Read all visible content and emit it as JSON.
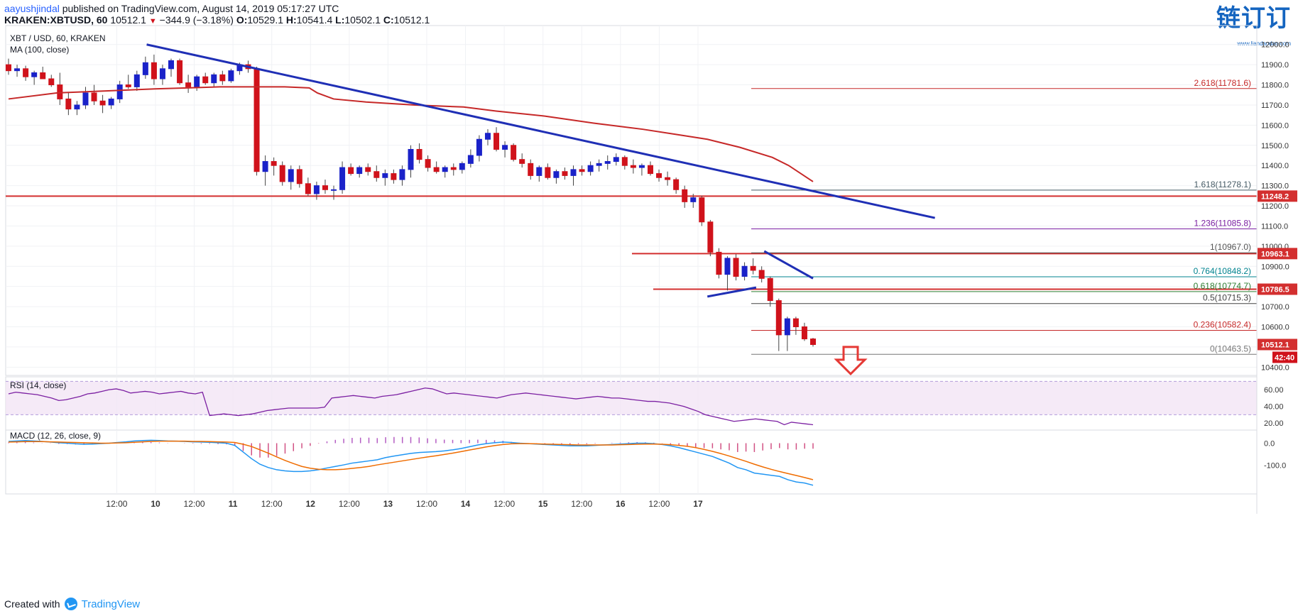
{
  "header": {
    "author": "aayushjindal",
    "published_text": " published on TradingView.com, August 14, 2019 05:17:27 UTC",
    "symbol_line": {
      "symbol": "KRAKEN:XBTUSD, 60",
      "last": "10512.1",
      "change": "−344.9 (−3.18%)",
      "o_label": "O:",
      "o": "10529.1",
      "h_label": "H:",
      "h": "10541.4",
      "l_label": "L:",
      "l": "10502.1",
      "c_label": "C:",
      "c": "10512.1"
    },
    "watermark": "链订订",
    "watermark_sub": "www.liandaodao.com"
  },
  "footer": {
    "created_with": "Created with",
    "brand": "TradingView"
  },
  "colors": {
    "up": "#1a22c9",
    "down": "#d0121b",
    "ma": "#c62828",
    "trend": "#1f2fb5",
    "support": "#d32f2f",
    "rsi": "#7b1fa2",
    "macd": "#2196f3",
    "signal": "#ef6c00"
  },
  "chart_data": [
    {
      "type": "candlestick",
      "title": "XBT / USD, 60, KRAKEN",
      "indicator_label": "MA (100, close)",
      "ylim": [
        10380,
        12080
      ],
      "y_ticks": [
        "12000.0",
        "11900.0",
        "11800.0",
        "11700.0",
        "11600.0",
        "11500.0",
        "11400.0",
        "11300.0",
        "11200.0",
        "11100.0",
        "11000.0",
        "10900.0",
        "10800.0",
        "10700.0",
        "10600.0",
        "10500.0",
        "10400.0"
      ],
      "x_ticks": [
        "12:00",
        "10",
        "12:00",
        "11",
        "12:00",
        "12",
        "12:00",
        "13",
        "12:00",
        "14",
        "12:00",
        "15",
        "12:00",
        "16",
        "12:00",
        "17"
      ],
      "price_tags": [
        {
          "value": 11248.2,
          "label": "11248.2",
          "color": "#d32f2f"
        },
        {
          "value": 10963.1,
          "label": "10963.1",
          "color": "#d32f2f"
        },
        {
          "value": 10786.5,
          "label": "10786.5",
          "color": "#d32f2f"
        },
        {
          "value": 10512.1,
          "label": "10512.1",
          "color": "#d32f2f"
        }
      ],
      "countdown": "42:40",
      "fib_levels": [
        {
          "label": "2.618(11781.6)",
          "value": 11781.6,
          "color": "#c62828"
        },
        {
          "label": "1.618(11278.1)",
          "value": 11278.1,
          "color": "#455a64"
        },
        {
          "label": "1.236(11085.8)",
          "value": 11085.8,
          "color": "#7b1fa2"
        },
        {
          "label": "1(10967.0)",
          "value": 10967.0,
          "color": "#555555"
        },
        {
          "label": "0.764(10848.2)",
          "value": 10848.2,
          "color": "#00838f"
        },
        {
          "label": "0.618(10774.7)",
          "value": 10774.7,
          "color": "#2e7d32"
        },
        {
          "label": "0.5(10715.3)",
          "value": 10715.3,
          "color": "#424242"
        },
        {
          "label": "0.236(10582.4)",
          "value": 10582.4,
          "color": "#c62828"
        },
        {
          "label": "0(10463.5)",
          "value": 10463.5,
          "color": "#777777"
        }
      ],
      "support_levels": [
        11248.2,
        10963.1,
        10786.5
      ],
      "trend_line": {
        "from": [
          9.85,
          12000
        ],
        "to": [
          14.7,
          11140
        ]
      },
      "triangle": {
        "upper": [
          [
            13.65,
            10975
          ],
          [
            13.95,
            10840
          ]
        ],
        "lower": [
          [
            13.3,
            10750
          ],
          [
            13.6,
            10795
          ]
        ]
      },
      "ohlc_x_start": 9.0,
      "ohlc_x_step": 0.0417,
      "ohlc": [
        [
          11900,
          11930,
          11850,
          11870
        ],
        [
          11870,
          11900,
          11840,
          11880
        ],
        [
          11880,
          11895,
          11820,
          11840
        ],
        [
          11840,
          11870,
          11800,
          11860
        ],
        [
          11860,
          11890,
          11830,
          11830
        ],
        [
          11830,
          11850,
          11790,
          11800
        ],
        [
          11800,
          11860,
          11700,
          11730
        ],
        [
          11730,
          11760,
          11650,
          11680
        ],
        [
          11680,
          11720,
          11650,
          11700
        ],
        [
          11700,
          11790,
          11680,
          11760
        ],
        [
          11760,
          11800,
          11700,
          11720
        ],
        [
          11720,
          11750,
          11660,
          11700
        ],
        [
          11700,
          11740,
          11680,
          11730
        ],
        [
          11730,
          11820,
          11710,
          11800
        ],
        [
          11800,
          11850,
          11780,
          11790
        ],
        [
          11790,
          11870,
          11770,
          11850
        ],
        [
          11850,
          11940,
          11830,
          11910
        ],
        [
          11910,
          11950,
          11800,
          11830
        ],
        [
          11830,
          11900,
          11800,
          11880
        ],
        [
          11880,
          11930,
          11840,
          11920
        ],
        [
          11920,
          11930,
          11800,
          11810
        ],
        [
          11810,
          11850,
          11760,
          11790
        ],
        [
          11790,
          11850,
          11770,
          11840
        ],
        [
          11840,
          11860,
          11800,
          11810
        ],
        [
          11810,
          11860,
          11790,
          11850
        ],
        [
          11850,
          11870,
          11800,
          11820
        ],
        [
          11820,
          11880,
          11810,
          11870
        ],
        [
          11870,
          11910,
          11850,
          11900
        ],
        [
          11900,
          11920,
          11860,
          11880
        ],
        [
          11880,
          11890,
          11350,
          11370
        ],
        [
          11370,
          11450,
          11300,
          11420
        ],
        [
          11420,
          11440,
          11350,
          11400
        ],
        [
          11400,
          11420,
          11300,
          11320
        ],
        [
          11320,
          11400,
          11280,
          11380
        ],
        [
          11380,
          11400,
          11290,
          11310
        ],
        [
          11310,
          11340,
          11250,
          11260
        ],
        [
          11260,
          11320,
          11230,
          11300
        ],
        [
          11300,
          11330,
          11260,
          11280
        ],
        [
          11280,
          11300,
          11230,
          11280
        ],
        [
          11280,
          11420,
          11260,
          11390
        ],
        [
          11390,
          11410,
          11350,
          11360
        ],
        [
          11360,
          11400,
          11340,
          11390
        ],
        [
          11390,
          11410,
          11350,
          11370
        ],
        [
          11370,
          11400,
          11320,
          11340
        ],
        [
          11340,
          11380,
          11300,
          11360
        ],
        [
          11360,
          11380,
          11310,
          11330
        ],
        [
          11330,
          11400,
          11300,
          11380
        ],
        [
          11380,
          11500,
          11340,
          11480
        ],
        [
          11480,
          11510,
          11410,
          11430
        ],
        [
          11430,
          11450,
          11370,
          11390
        ],
        [
          11390,
          11420,
          11360,
          11370
        ],
        [
          11370,
          11400,
          11340,
          11390
        ],
        [
          11390,
          11410,
          11350,
          11380
        ],
        [
          11380,
          11420,
          11360,
          11410
        ],
        [
          11410,
          11480,
          11390,
          11450
        ],
        [
          11450,
          11550,
          11420,
          11530
        ],
        [
          11530,
          11580,
          11500,
          11560
        ],
        [
          11560,
          11590,
          11470,
          11480
        ],
        [
          11480,
          11520,
          11440,
          11500
        ],
        [
          11500,
          11510,
          11420,
          11430
        ],
        [
          11430,
          11460,
          11390,
          11410
        ],
        [
          11410,
          11430,
          11330,
          11350
        ],
        [
          11350,
          11400,
          11320,
          11390
        ],
        [
          11390,
          11410,
          11330,
          11340
        ],
        [
          11340,
          11380,
          11310,
          11370
        ],
        [
          11370,
          11390,
          11330,
          11350
        ],
        [
          11350,
          11400,
          11300,
          11380
        ],
        [
          11380,
          11400,
          11350,
          11370
        ],
        [
          11370,
          11420,
          11350,
          11400
        ],
        [
          11400,
          11430,
          11370,
          11410
        ],
        [
          11410,
          11450,
          11380,
          11420
        ],
        [
          11420,
          11460,
          11400,
          11440
        ],
        [
          11440,
          11450,
          11380,
          11400
        ],
        [
          11400,
          11430,
          11360,
          11390
        ],
        [
          11390,
          11410,
          11350,
          11400
        ],
        [
          11400,
          11420,
          11350,
          11360
        ],
        [
          11360,
          11380,
          11320,
          11340
        ],
        [
          11340,
          11370,
          11300,
          11330
        ],
        [
          11330,
          11340,
          11260,
          11280
        ],
        [
          11280,
          11300,
          11190,
          11220
        ],
        [
          11220,
          11260,
          11190,
          11240
        ],
        [
          11240,
          11250,
          11100,
          11120
        ],
        [
          11120,
          11130,
          10950,
          10970
        ],
        [
          10970,
          10990,
          10840,
          10860
        ],
        [
          10860,
          10950,
          10780,
          10940
        ],
        [
          10940,
          10960,
          10830,
          10850
        ],
        [
          10850,
          10920,
          10830,
          10900
        ],
        [
          10900,
          10940,
          10860,
          10880
        ],
        [
          10880,
          10900,
          10820,
          10840
        ],
        [
          10840,
          10850,
          10700,
          10730
        ],
        [
          10730,
          10740,
          10480,
          10560
        ],
        [
          10560,
          10650,
          10480,
          10640
        ],
        [
          10640,
          10650,
          10560,
          10600
        ],
        [
          10600,
          10620,
          10530,
          10540
        ],
        [
          10540,
          10545,
          10502,
          10512
        ]
      ],
      "ma_100": [
        [
          9.0,
          11730
        ],
        [
          9.3,
          11760
        ],
        [
          9.6,
          11770
        ],
        [
          9.9,
          11780
        ],
        [
          10.1,
          11785
        ],
        [
          10.3,
          11790
        ],
        [
          10.5,
          11790
        ],
        [
          10.7,
          11790
        ],
        [
          10.85,
          11785
        ],
        [
          10.9,
          11760
        ],
        [
          11.0,
          11730
        ],
        [
          11.2,
          11715
        ],
        [
          11.5,
          11700
        ],
        [
          11.8,
          11690
        ],
        [
          12.0,
          11670
        ],
        [
          12.3,
          11645
        ],
        [
          12.6,
          11610
        ],
        [
          12.9,
          11580
        ],
        [
          13.1,
          11555
        ],
        [
          13.3,
          11530
        ],
        [
          13.5,
          11490
        ],
        [
          13.7,
          11440
        ],
        [
          13.8,
          11400
        ],
        [
          13.95,
          11320
        ]
      ]
    },
    {
      "type": "line",
      "title": "RSI (14, close)",
      "ylim": [
        15,
        72
      ],
      "y_ticks": [
        "60.00",
        "40.00",
        "20.00"
      ],
      "band": [
        30,
        70
      ],
      "x_start": 9.0,
      "x_step": 0.05,
      "values": [
        55,
        57,
        56,
        55,
        54,
        52,
        50,
        47,
        48,
        50,
        52,
        55,
        56,
        58,
        60,
        61,
        59,
        56,
        57,
        58,
        57,
        55,
        56,
        57,
        58,
        56,
        55,
        57,
        29,
        30,
        31,
        30,
        29,
        30,
        31,
        33,
        35,
        36,
        37,
        38,
        38,
        38,
        38,
        38,
        39,
        50,
        51,
        52,
        53,
        52,
        51,
        50,
        52,
        53,
        54,
        56,
        58,
        60,
        62,
        61,
        58,
        55,
        56,
        55,
        54,
        53,
        52,
        51,
        50,
        52,
        54,
        55,
        56,
        55,
        54,
        53,
        52,
        51,
        50,
        49,
        50,
        51,
        52,
        51,
        50,
        50,
        49,
        48,
        47,
        46,
        46,
        45,
        44,
        42,
        40,
        37,
        34,
        30,
        28,
        26,
        24,
        22,
        23,
        24,
        25,
        24,
        23,
        22,
        18,
        21,
        20,
        19,
        18
      ]
    },
    {
      "type": "line",
      "title": "MACD (12, 26, close, 9)",
      "ylim": [
        -210,
        40
      ],
      "y_ticks": [
        "0.0",
        "-100.0"
      ],
      "x_start": 9.0,
      "x_step": 0.05,
      "macd": [
        8,
        10,
        12,
        10,
        8,
        5,
        2,
        0,
        -3,
        -5,
        -4,
        -2,
        0,
        3,
        6,
        10,
        12,
        13,
        12,
        10,
        9,
        8,
        6,
        5,
        4,
        2,
        0,
        -10,
        -40,
        -70,
        -95,
        -110,
        -120,
        -125,
        -128,
        -128,
        -125,
        -120,
        -112,
        -105,
        -98,
        -90,
        -85,
        -80,
        -75,
        -65,
        -58,
        -52,
        -46,
        -42,
        -40,
        -38,
        -35,
        -30,
        -24,
        -16,
        -8,
        -2,
        2,
        5,
        3,
        0,
        -2,
        -4,
        -6,
        -8,
        -10,
        -12,
        -12,
        -12,
        -10,
        -8,
        -6,
        -4,
        -2,
        0,
        0,
        -2,
        -6,
        -12,
        -20,
        -30,
        -40,
        -50,
        -60,
        -75,
        -90,
        -110,
        -120,
        -135,
        -140,
        -145,
        -150,
        -165,
        -175,
        -180,
        -190
      ],
      "signal": [
        5,
        6,
        7,
        7,
        7,
        6,
        5,
        4,
        3,
        2,
        1,
        0,
        0,
        1,
        2,
        4,
        6,
        8,
        9,
        9,
        9,
        9,
        8,
        8,
        7,
        6,
        5,
        3,
        -5,
        -15,
        -30,
        -45,
        -62,
        -78,
        -92,
        -105,
        -113,
        -118,
        -120,
        -120,
        -118,
        -114,
        -110,
        -105,
        -98,
        -92,
        -86,
        -80,
        -74,
        -68,
        -62,
        -57,
        -51,
        -45,
        -38,
        -31,
        -24,
        -17,
        -11,
        -6,
        -3,
        -2,
        -2,
        -3,
        -4,
        -5,
        -6,
        -7,
        -8,
        -8,
        -8,
        -8,
        -8,
        -7,
        -6,
        -5,
        -4,
        -4,
        -5,
        -7,
        -10,
        -14,
        -20,
        -28,
        -37,
        -47,
        -58,
        -70,
        -82,
        -95,
        -107,
        -118,
        -128,
        -137,
        -146,
        -155,
        -165
      ],
      "histogram": [
        3,
        4,
        5,
        3,
        1,
        -1,
        -3,
        -4,
        -6,
        -7,
        -5,
        -2,
        0,
        2,
        4,
        6,
        6,
        5,
        3,
        1,
        0,
        -1,
        -2,
        -3,
        -3,
        -4,
        -5,
        -13,
        -35,
        -55,
        -65,
        -65,
        -58,
        -47,
        -36,
        -23,
        -12,
        -2,
        8,
        15,
        20,
        24,
        25,
        25,
        23,
        27,
        28,
        28,
        28,
        26,
        22,
        19,
        16,
        15,
        14,
        15,
        16,
        15,
        13,
        11,
        6,
        2,
        0,
        -1,
        -2,
        -3,
        -4,
        -5,
        -4,
        -4,
        -2,
        0,
        2,
        3,
        4,
        5,
        4,
        2,
        -1,
        -5,
        -10,
        -16,
        -20,
        -22,
        -23,
        -28,
        -32,
        -40,
        -38,
        -40,
        -33,
        -27,
        -22,
        -28,
        -29,
        -25,
        -25
      ]
    }
  ]
}
